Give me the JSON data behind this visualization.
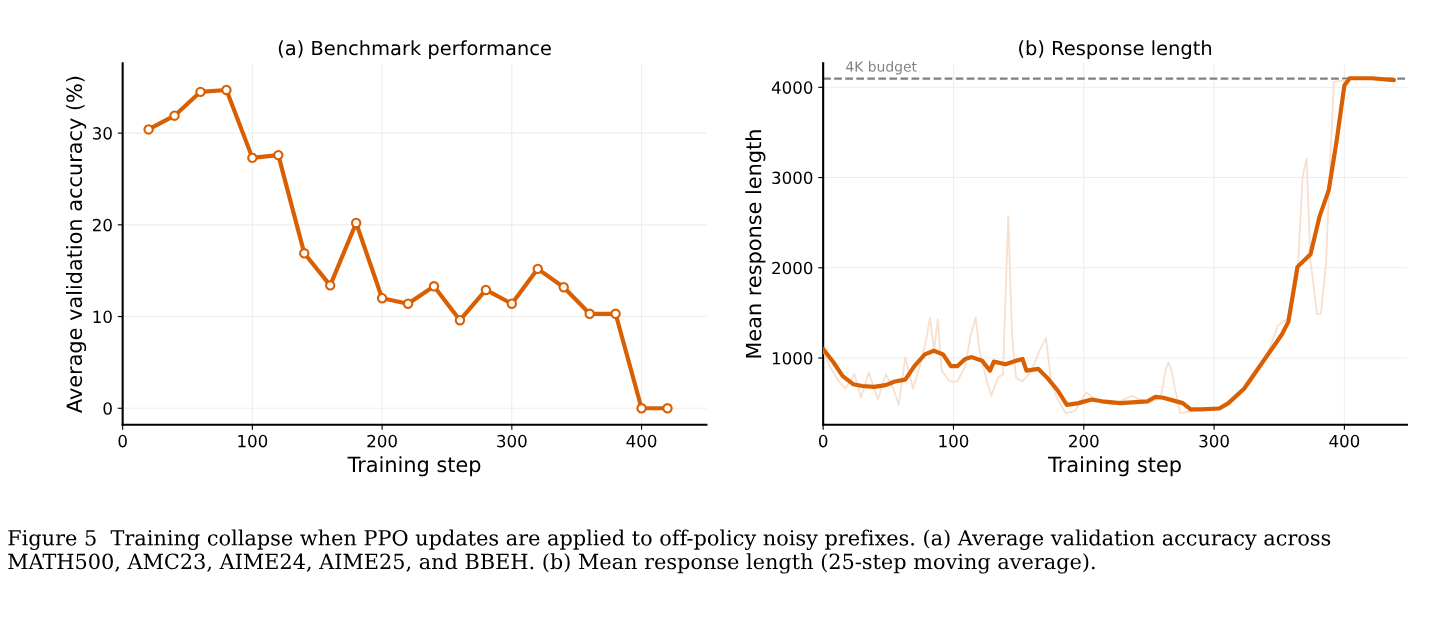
{
  "chart_data": [
    {
      "type": "line",
      "title": "(a) Benchmark performance",
      "xlabel": "Training step",
      "ylabel": "Average validation accuracy (%)",
      "x": [
        20,
        40,
        60,
        80,
        100,
        120,
        140,
        160,
        180,
        200,
        220,
        240,
        260,
        280,
        300,
        320,
        340,
        360,
        380,
        400,
        420
      ],
      "series": [
        {
          "color": "#d95f02",
          "values": [
            30.4,
            31.9,
            34.5,
            34.7,
            27.3,
            27.6,
            16.9,
            13.4,
            20.2,
            12.0,
            11.4,
            13.3,
            9.6,
            12.9,
            11.4,
            15.2,
            13.2,
            10.3,
            10.3,
            0,
            0
          ]
        }
      ],
      "xlim": [
        0,
        450
      ],
      "ylim": [
        -1.8,
        37.6
      ],
      "xticks": [
        0,
        100,
        200,
        300,
        400
      ],
      "yticks": [
        0,
        10,
        20,
        30
      ],
      "grid": true,
      "marker": "circle",
      "line_style": "solid",
      "legend": false
    },
    {
      "type": "line",
      "title": "(b) Response length",
      "xlabel": "Training step",
      "ylabel": "Mean response length",
      "series": [
        {
          "color": "#f7e0cf",
          "x": [
            0,
            5,
            12,
            17,
            24,
            29,
            35,
            42,
            48,
            54,
            58,
            63,
            69,
            75,
            79,
            82,
            85,
            88,
            91,
            97,
            103,
            109,
            113,
            117,
            120,
            125,
            129,
            134,
            138,
            142,
            145,
            148,
            153,
            160,
            166,
            171,
            175,
            180,
            186,
            193,
            202,
            211,
            222,
            237,
            249,
            259,
            263,
            265,
            267,
            270,
            274,
            282,
            290,
            305,
            317,
            329,
            343,
            349,
            358,
            364,
            368,
            371,
            374,
            379,
            382,
            386,
            389,
            392,
            409
          ],
          "values": [
            1080,
            910,
            740,
            660,
            820,
            560,
            840,
            540,
            820,
            660,
            480,
            1010,
            660,
            950,
            1200,
            1450,
            1080,
            1430,
            860,
            740,
            740,
            910,
            1240,
            1450,
            1080,
            780,
            580,
            780,
            820,
            2570,
            1240,
            780,
            740,
            860,
            1080,
            1220,
            740,
            540,
            390,
            410,
            620,
            520,
            480,
            580,
            500,
            560,
            880,
            950,
            880,
            660,
            390,
            410,
            430,
            460,
            560,
            740,
            1120,
            1360,
            1450,
            1900,
            3020,
            3210,
            2070,
            1490,
            1490,
            2070,
            3150,
            4060,
            4100
          ]
        },
        {
          "color": "#d95f02",
          "x": [
            0,
            8,
            15,
            23,
            30,
            39,
            48,
            55,
            63,
            70,
            78,
            85,
            92,
            98,
            103,
            109,
            114,
            122,
            128,
            131,
            140,
            148,
            153,
            156,
            165,
            172,
            180,
            187,
            196,
            206,
            214,
            228,
            249,
            255,
            261,
            276,
            282,
            290,
            304,
            311,
            323,
            338,
            352,
            357,
            364,
            374,
            381,
            388,
            394,
            400,
            404,
            421,
            438
          ],
          "values": [
            1100,
            950,
            800,
            710,
            690,
            680,
            700,
            740,
            760,
            910,
            1040,
            1080,
            1040,
            910,
            910,
            990,
            1010,
            970,
            860,
            960,
            930,
            970,
            990,
            860,
            880,
            780,
            640,
            480,
            500,
            540,
            520,
            500,
            520,
            570,
            560,
            500,
            430,
            430,
            440,
            500,
            660,
            970,
            1260,
            1400,
            2010,
            2150,
            2570,
            2860,
            3400,
            4020,
            4100,
            4100,
            4080
          ]
        }
      ],
      "xlim": [
        0,
        448
      ],
      "ylim": [
        260,
        4265
      ],
      "xticks": [
        0,
        100,
        200,
        300,
        400
      ],
      "yticks": [
        1000,
        2000,
        3000,
        4000
      ],
      "grid": true,
      "marker": "none",
      "line_style": "solid",
      "legend": false,
      "ref_lines": [
        {
          "axis": "y",
          "value": 4096,
          "label": "4K budget",
          "color": "#808080",
          "line_style": "dashed"
        }
      ],
      "annotations": [
        "Figure 5  Training collapse when PPO updates are applied to off-policy noisy prefixes. (a) Average validation accuracy across MATH500, AMC23, AIME24, AIME25, and BBEH. (b) Mean response length (25-step moving average)."
      ]
    }
  ]
}
